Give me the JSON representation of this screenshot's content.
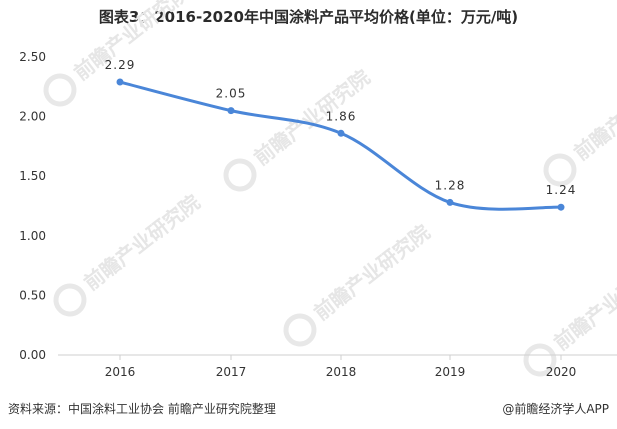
{
  "title": "图表3：2016-2020年中国涂料产品平均价格(单位：万元/吨)",
  "watermark": "前瞻产业研究院",
  "footer": {
    "source_label": "资料来源：",
    "source_text": "中国涂料工业协会 前瞻产业研究院整理",
    "credit_icon": "@",
    "credit_text": "前瞻经济学人APP"
  },
  "colors": {
    "line": "#4a86d8",
    "axis": "#cfcfcf",
    "text": "#333333"
  },
  "chart_data": {
    "type": "line",
    "title": "图表3：2016-2020年中国涂料产品平均价格(单位：万元/吨)",
    "xlabel": "",
    "ylabel": "",
    "categories": [
      "2016",
      "2017",
      "2018",
      "2019",
      "2020"
    ],
    "values": [
      2.29,
      2.05,
      1.86,
      1.28,
      1.24
    ],
    "data_labels": [
      "2.29",
      "2.05",
      "1.86",
      "1.28",
      "1.24"
    ],
    "ylim": [
      0,
      2.5
    ],
    "yticks": [
      0,
      0.5,
      1.0,
      1.5,
      2.0,
      2.5
    ],
    "ytick_labels": [
      "0.00",
      "0.50",
      "1.00",
      "1.50",
      "2.00",
      "2.50"
    ],
    "grid": false,
    "legend": "none",
    "smooth": true
  }
}
